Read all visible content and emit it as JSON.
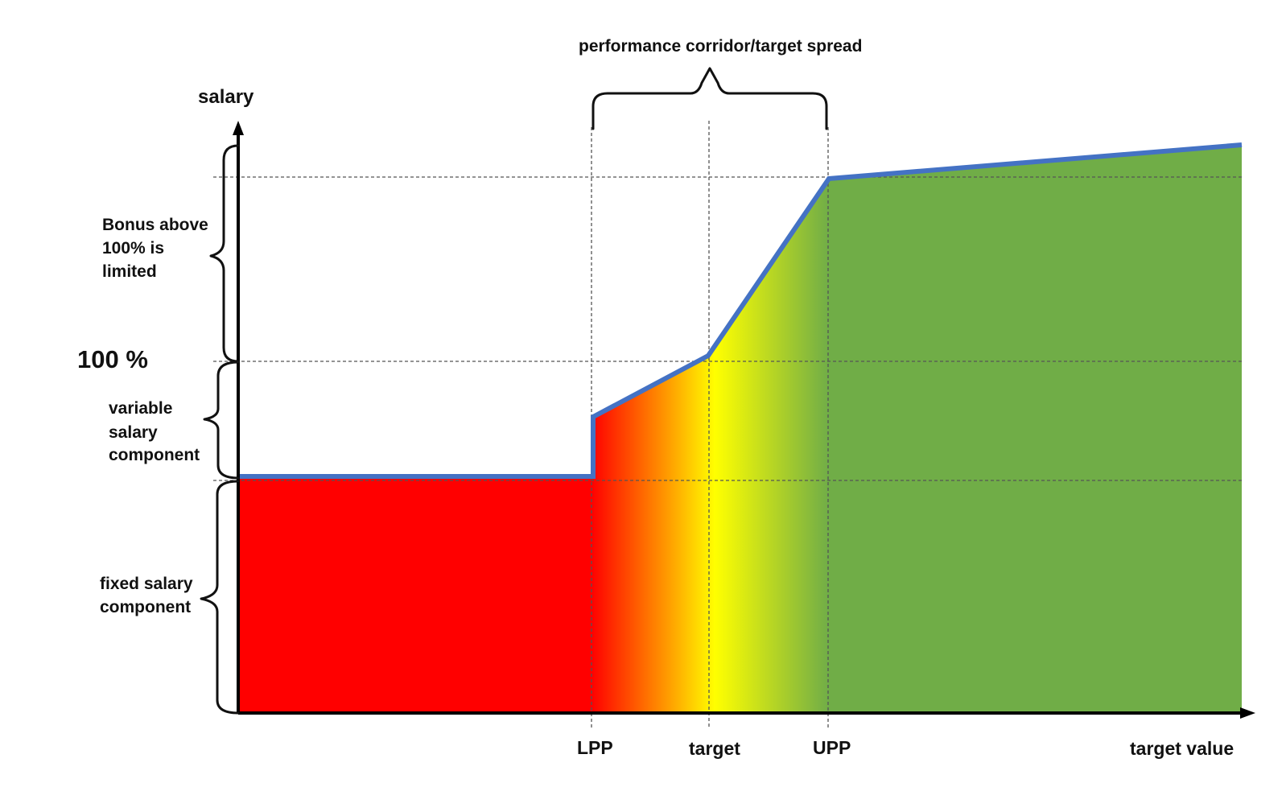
{
  "axes": {
    "y_label": "salary",
    "x_label": "target value"
  },
  "levels": {
    "hundred_percent": "100 %"
  },
  "side_labels": {
    "bonus": [
      "Bonus above",
      "100% is",
      "limited"
    ],
    "variable": [
      "variable",
      "salary",
      "component"
    ],
    "fixed": [
      "fixed salary",
      "component"
    ]
  },
  "corridor_label": "performance corridor/target spread",
  "x_ticks": [
    "LPP",
    "target",
    "UPP"
  ],
  "colors": {
    "curve": "#4472c4",
    "low": "#ff0000",
    "orange": "#ffa000",
    "mid": "#ffff00",
    "high": "#70ad47"
  }
}
